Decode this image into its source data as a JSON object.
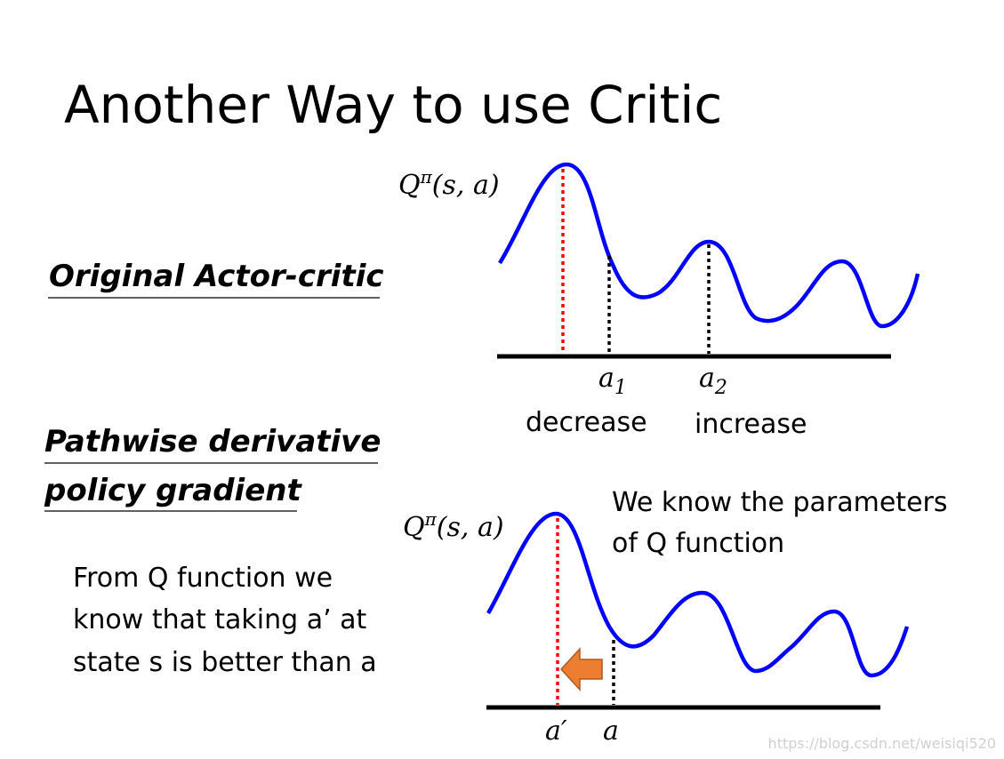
{
  "title": "Another Way to use Critic",
  "sections": [
    {
      "heading_lines": [
        "Original Actor-critic"
      ]
    },
    {
      "heading_lines": [
        "Pathwise derivative",
        "policy gradient"
      ]
    }
  ],
  "note": [
    "From Q function we",
    "know that taking a’ at",
    "state s is better than a"
  ],
  "top_plot": {
    "y_label": {
      "base": "Q",
      "sup": "π",
      "args": "(s, a)"
    },
    "points": [
      {
        "label": {
          "base": "a",
          "sub": "1"
        },
        "caption": "decrease"
      },
      {
        "label": {
          "base": "a",
          "sub": "2"
        },
        "caption": "increase"
      }
    ]
  },
  "bottom_plot": {
    "y_label": {
      "base": "Q",
      "sup": "π",
      "args": "(s, a)"
    },
    "annotation": [
      "We know the parameters",
      "of Q function"
    ],
    "points": [
      {
        "label": "a′"
      },
      {
        "label": "a"
      }
    ]
  },
  "watermark": "https://blog.csdn.net/weisiqi520"
}
